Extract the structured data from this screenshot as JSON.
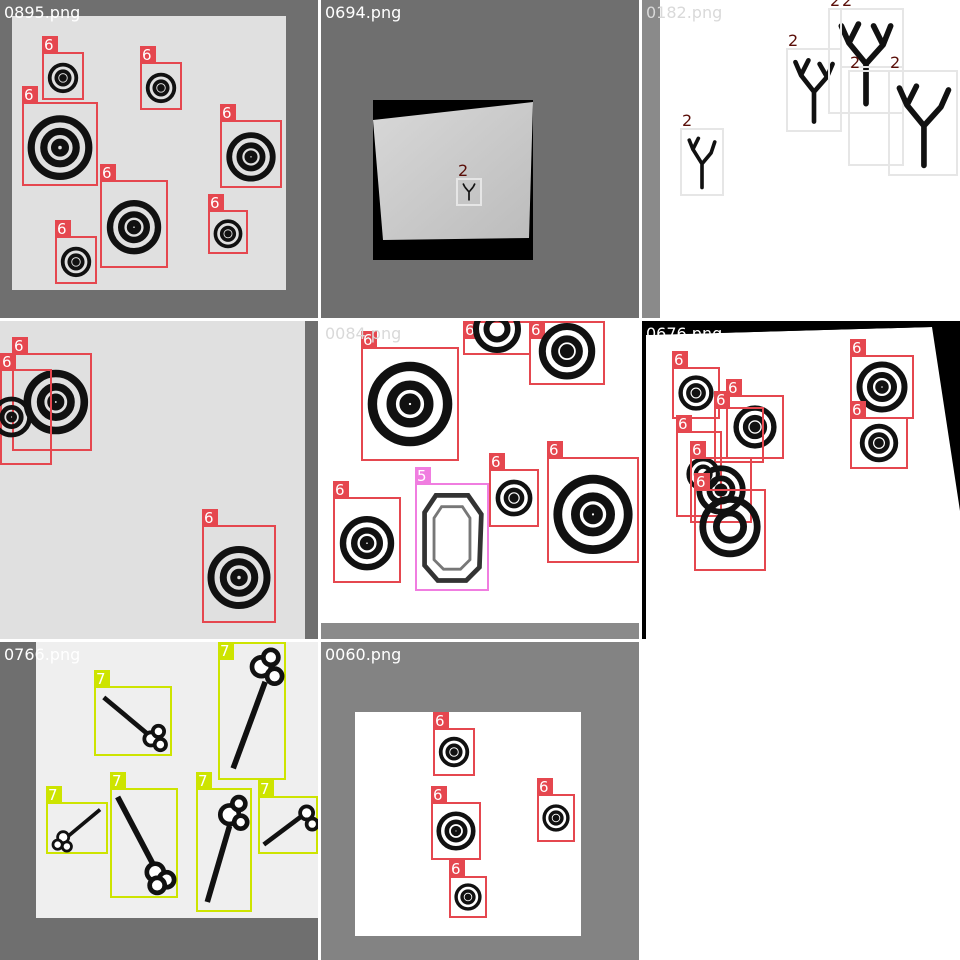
{
  "tiles": [
    {
      "file": "0895.png",
      "bg": "#6f6f6f"
    },
    {
      "file": "0694.png",
      "bg": "#6f6f6f"
    },
    {
      "file": "0182.png",
      "bg": "#ffffff"
    },
    {
      "file": "",
      "bg": "#e0e0e0"
    },
    {
      "file": "0084.png",
      "bg": "#ffffff"
    },
    {
      "file": "0676.png",
      "bg": "#ffffff"
    },
    {
      "file": "0766.png",
      "bg": "#6f6f6f"
    },
    {
      "file": "0060.png",
      "bg": "#838383"
    }
  ],
  "class_tags": {
    "spiral": "6",
    "coral": "2",
    "gem": "5",
    "key": "7"
  },
  "colors": {
    "spiral": "#e5474f",
    "gem": "#f07de0",
    "key": "#cde400",
    "coral": "#e6e6e6"
  }
}
